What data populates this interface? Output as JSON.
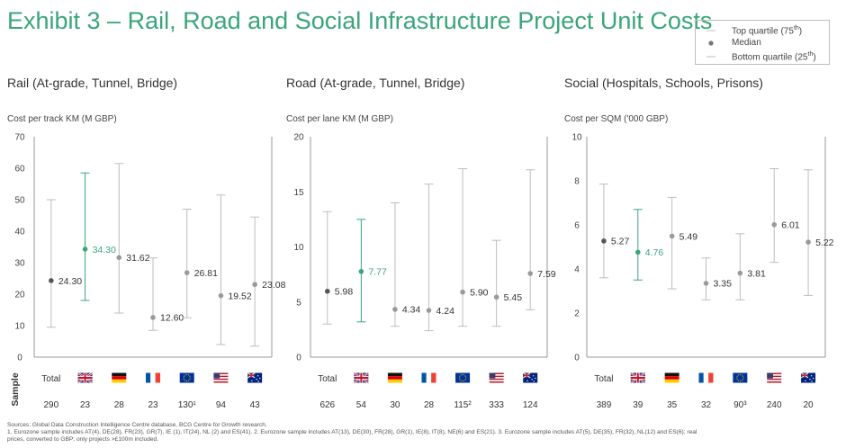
{
  "title": "Exhibit 3 – Rail, Road and Social Infrastructure Project Unit Costs",
  "legend": {
    "top": "Top quartile (75th)",
    "median": "Median",
    "bottom": "Bottom quartile (25th)"
  },
  "sample_label": "Sample",
  "total_label": "Total",
  "colors": {
    "title": "#3aa57a",
    "median_total": "#555555",
    "median_uk": "#3aa57a",
    "median_other": "#9a9a9a",
    "whisker": "#bdbdbd"
  },
  "chart_data": [
    {
      "type": "range",
      "title": "Rail (At-grade, Tunnel, Bridge)",
      "ylabel": "Cost per track KM (M GBP)",
      "ylim": [
        0,
        70
      ],
      "yticks": [
        0,
        10,
        20,
        30,
        40,
        50,
        60,
        70
      ],
      "categories": [
        "Total",
        "UK",
        "Germany",
        "France",
        "Eurozone",
        "USA",
        "Australia"
      ],
      "median": [
        24.3,
        34.3,
        31.62,
        12.6,
        26.81,
        19.52,
        23.08
      ],
      "median_labels": [
        "24.30",
        "34.30",
        "31.62",
        "12.60",
        "26.81",
        "19.52",
        "23.08"
      ],
      "low": [
        9.5,
        18,
        14,
        8.5,
        12.5,
        4,
        3.5
      ],
      "high": [
        50,
        58.5,
        61.5,
        31.5,
        47,
        51.5,
        44.5
      ],
      "sample_sizes": [
        "290",
        "23",
        "28",
        "23",
        "130¹",
        "94",
        "43"
      ]
    },
    {
      "type": "range",
      "title": "Road (At-grade, Tunnel, Bridge)",
      "ylabel": "Cost per lane KM (M GBP)",
      "ylim": [
        0,
        20
      ],
      "yticks": [
        0,
        5,
        10,
        15,
        20
      ],
      "categories": [
        "Total",
        "UK",
        "Germany",
        "France",
        "Eurozone",
        "USA",
        "Australia"
      ],
      "median": [
        5.98,
        7.77,
        4.34,
        4.24,
        5.9,
        5.45,
        7.59
      ],
      "median_labels": [
        "5.98",
        "7.77",
        "4.34",
        "4.24",
        "5.90",
        "5.45",
        "7.59"
      ],
      "low": [
        3,
        3.2,
        2.8,
        2.4,
        2.8,
        2.8,
        4.3
      ],
      "high": [
        13.2,
        12.5,
        14,
        15.7,
        17.1,
        10.6,
        17
      ],
      "sample_sizes": [
        "626",
        "54",
        "30",
        "28",
        "115²",
        "333",
        "124"
      ]
    },
    {
      "type": "range",
      "title": "Social (Hospitals, Schools, Prisons)",
      "ylabel": "Cost per SQM ('000 GBP)",
      "ylim": [
        0,
        10
      ],
      "yticks": [
        0,
        2,
        4,
        6,
        8,
        10
      ],
      "categories": [
        "Total",
        "UK",
        "Germany",
        "France",
        "Eurozone",
        "USA",
        "Australia"
      ],
      "median": [
        5.27,
        4.76,
        5.49,
        3.35,
        3.81,
        6.01,
        5.22
      ],
      "median_labels": [
        "5.27",
        "4.76",
        "5.49",
        "3.35",
        "3.81",
        "6.01",
        "5.22"
      ],
      "low": [
        3.6,
        3.5,
        3.1,
        2.6,
        2.6,
        4.3,
        2.8
      ],
      "high": [
        7.85,
        6.7,
        7.25,
        4.5,
        5.6,
        8.55,
        8.5
      ],
      "sample_sizes": [
        "389",
        "39",
        "35",
        "32",
        "90³",
        "240",
        "20"
      ]
    }
  ],
  "footnote": [
    "Sources: Global Data Construction Intelligence Centre database, BCG Centre for Growth research.",
    "1. Eurozone sample includes AT(4), DE(28), FR(23), GR(7), IE (1), IT(24), NL (2) and ES(41). 2. Eurozone sample includes AT(13), DE(30), FR(28), GR(1), IE(8), IT(8), NE(6) and ES(21). 3. Eurozone sample includes AT(5), DE(35), FR(32), NL(12) and ES(6); real",
    "prices, converted to GBP; only projects >£100m included."
  ]
}
